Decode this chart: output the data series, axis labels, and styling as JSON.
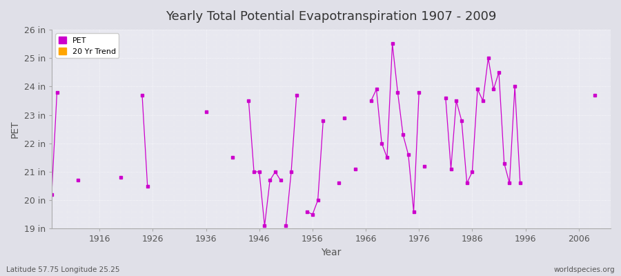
{
  "title": "Yearly Total Potential Evapotranspiration 1907 - 2009",
  "xlabel": "Year",
  "ylabel": "PET",
  "subtitle_left": "Latitude 57.75 Longitude 25.25",
  "subtitle_right": "worldspecies.org",
  "ylim": [
    19,
    26
  ],
  "ytick_labels": [
    "19 in",
    "20 in",
    "21 in",
    "22 in",
    "23 in",
    "24 in",
    "25 in",
    "26 in"
  ],
  "ytick_values": [
    19,
    20,
    21,
    22,
    23,
    24,
    25,
    26
  ],
  "xtick_values": [
    1916,
    1926,
    1936,
    1946,
    1956,
    1966,
    1976,
    1986,
    1996,
    2006
  ],
  "pet_color": "#cc00cc",
  "trend_color": "#ffa500",
  "background_color": "#e0e0e8",
  "plot_bg_color": "#e8e8f0",
  "legend_entries": [
    "PET",
    "20 Yr Trend"
  ],
  "segments": [
    [
      [
        1907,
        20.2
      ],
      [
        1908,
        23.8
      ]
    ],
    [
      [
        1912,
        20.7
      ]
    ],
    [
      [
        1920,
        20.8
      ]
    ],
    [
      [
        1924,
        23.7
      ],
      [
        1925,
        20.5
      ]
    ],
    [
      [
        1936,
        23.1
      ]
    ],
    [
      [
        1941,
        21.5
      ]
    ],
    [
      [
        1944,
        23.5
      ],
      [
        1945,
        21.0
      ],
      [
        1946,
        21.0
      ],
      [
        1947,
        19.1
      ],
      [
        1948,
        20.7
      ],
      [
        1949,
        21.0
      ],
      [
        1950,
        20.7
      ]
    ],
    [
      [
        1951,
        19.1
      ],
      [
        1952,
        21.0
      ],
      [
        1953,
        23.7
      ]
    ],
    [
      [
        1955,
        19.6
      ],
      [
        1956,
        19.5
      ],
      [
        1957,
        20.0
      ],
      [
        1958,
        22.8
      ]
    ],
    [
      [
        1961,
        20.6
      ]
    ],
    [
      [
        1962,
        22.9
      ]
    ],
    [
      [
        1964,
        21.1
      ]
    ],
    [
      [
        1967,
        23.5
      ],
      [
        1968,
        23.9
      ],
      [
        1969,
        22.0
      ],
      [
        1970,
        21.5
      ],
      [
        1971,
        25.5
      ],
      [
        1972,
        23.8
      ],
      [
        1973,
        22.3
      ],
      [
        1974,
        21.6
      ],
      [
        1975,
        19.6
      ],
      [
        1976,
        23.8
      ]
    ],
    [
      [
        1977,
        21.2
      ]
    ],
    [
      [
        1981,
        23.6
      ],
      [
        1982,
        21.1
      ],
      [
        1983,
        23.5
      ],
      [
        1984,
        22.8
      ],
      [
        1985,
        20.6
      ],
      [
        1986,
        21.0
      ],
      [
        1987,
        23.9
      ],
      [
        1988,
        23.5
      ],
      [
        1989,
        25.0
      ],
      [
        1990,
        23.9
      ],
      [
        1991,
        24.5
      ],
      [
        1992,
        21.3
      ],
      [
        1993,
        20.6
      ],
      [
        1994,
        24.0
      ],
      [
        1995,
        20.6
      ]
    ],
    [
      [
        2009,
        23.7
      ]
    ]
  ]
}
